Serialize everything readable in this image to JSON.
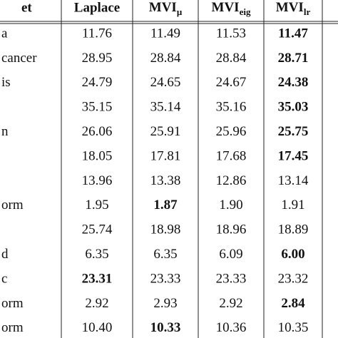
{
  "table": {
    "header": [
      "et",
      "Laplace",
      {
        "main": "MVI",
        "sub": "μ"
      },
      {
        "main": "MVI",
        "sub": "eig"
      },
      {
        "main": "MVI",
        "sub": "lr"
      }
    ],
    "rows": [
      [
        "a",
        "11.76",
        "11.49",
        "11.53",
        "11.47"
      ],
      [
        "cancer",
        "28.95",
        "28.84",
        "28.84",
        "28.71"
      ],
      [
        "is",
        "24.79",
        "24.65",
        "24.67",
        "24.38"
      ],
      [
        null,
        "35.15",
        "35.14",
        "35.16",
        "35.03"
      ],
      [
        "n",
        "26.06",
        "25.91",
        "25.96",
        "25.75"
      ],
      [
        null,
        "18.05",
        "17.81",
        "17.68",
        "17.45"
      ],
      [
        null,
        "13.96",
        "13.38",
        "12.86",
        "13.14"
      ],
      [
        "orm",
        "1.95",
        "1.87",
        "1.90",
        "1.91"
      ],
      [
        null,
        "25.74",
        "18.98",
        "18.96",
        "18.89"
      ],
      [
        "d",
        "6.35",
        "6.35",
        "6.09",
        "6.00"
      ],
      [
        "c",
        "23.31",
        "23.33",
        "23.33",
        "23.32"
      ],
      [
        "orm",
        "2.92",
        "2.93",
        "2.92",
        "2.84"
      ],
      [
        "orm",
        "10.40",
        "10.33",
        "10.36",
        "10.35"
      ]
    ],
    "bold": [
      [
        4
      ],
      [
        4
      ],
      [
        4
      ],
      [
        4
      ],
      [
        4
      ],
      [
        4
      ],
      [],
      [
        2
      ],
      [],
      [
        4
      ],
      [
        1
      ],
      [
        4
      ],
      [
        2
      ]
    ]
  }
}
